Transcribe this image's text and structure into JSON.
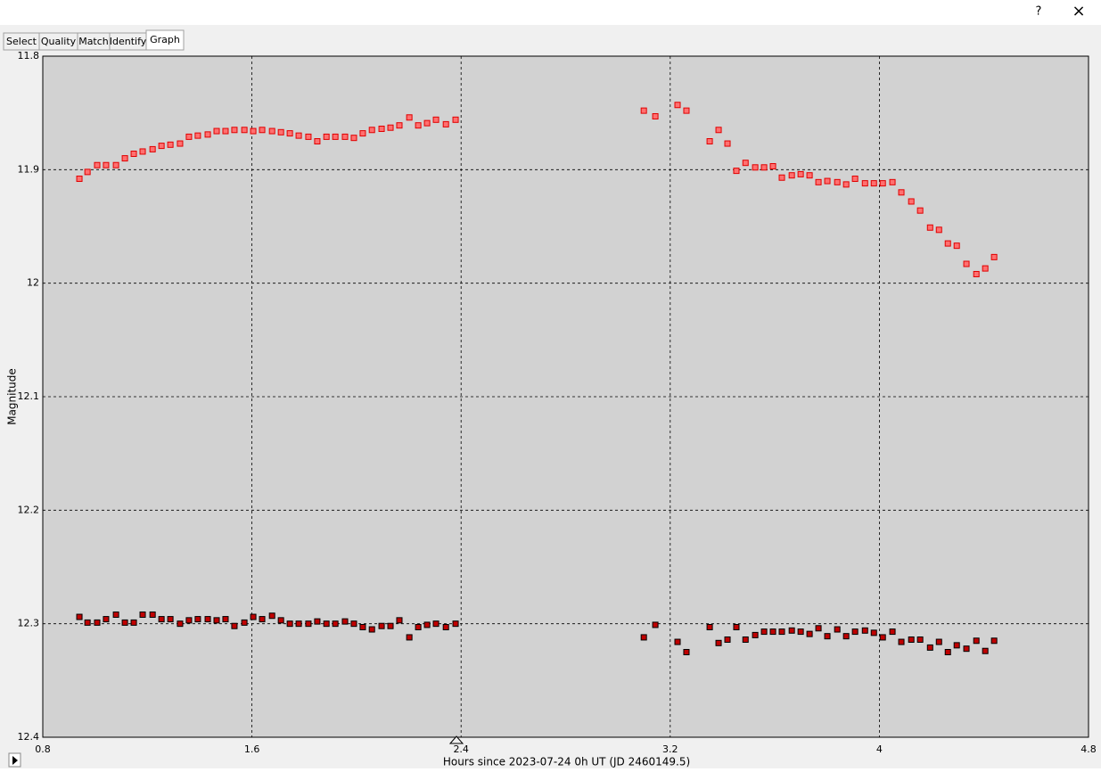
{
  "window": {
    "help": "?",
    "close": "×"
  },
  "tabs": [
    "Select",
    "Quality",
    "Match",
    "Identify",
    "Graph"
  ],
  "chart_data": {
    "type": "line",
    "x_label": "Hours since 2023-07-24 0h UT (JD 2460149.5)",
    "y_label": "Magnitude",
    "x": [
      0.94,
      0.971,
      1.008,
      1.042,
      1.08,
      1.114,
      1.148,
      1.182,
      1.22,
      1.254,
      1.288,
      1.325,
      1.359,
      1.393,
      1.431,
      1.465,
      1.499,
      1.533,
      1.571,
      1.605,
      1.639,
      1.677,
      1.711,
      1.745,
      1.779,
      1.816,
      1.85,
      1.885,
      1.919,
      1.956,
      1.99,
      2.024,
      2.059,
      2.096,
      2.13,
      2.164,
      2.202,
      2.236,
      2.27,
      2.304,
      2.342,
      2.379,
      3.099,
      3.143,
      3.228,
      3.262,
      3.351,
      3.385,
      3.419,
      3.453,
      3.488,
      3.525,
      3.559,
      3.593,
      3.627,
      3.665,
      3.699,
      3.733,
      3.767,
      3.801,
      3.839,
      3.873,
      3.907,
      3.945,
      3.979,
      4.013,
      4.05,
      4.084,
      4.122,
      4.156,
      4.194,
      4.228,
      4.262,
      4.296,
      4.333,
      4.371,
      4.405,
      4.439
    ],
    "series": [
      {
        "color": "#ff0000",
        "marker_color": "#ff7070",
        "marker_edge": "#e00000",
        "line_width": 3.5,
        "values": [
          11.908,
          11.902,
          11.896,
          11.896,
          11.896,
          11.89,
          11.886,
          11.884,
          11.882,
          11.879,
          11.878,
          11.877,
          11.871,
          11.87,
          11.869,
          11.866,
          11.866,
          11.865,
          11.865,
          11.866,
          11.865,
          11.866,
          11.867,
          11.868,
          11.87,
          11.871,
          11.875,
          11.871,
          11.871,
          11.871,
          11.872,
          11.868,
          11.865,
          11.864,
          11.863,
          11.861,
          11.854,
          11.861,
          11.859,
          11.856,
          11.86,
          11.856,
          11.848,
          11.853,
          11.843,
          11.848,
          11.875,
          11.865,
          11.877,
          11.901,
          11.894,
          11.898,
          11.898,
          11.897,
          11.907,
          11.905,
          11.904,
          11.905,
          11.911,
          11.91,
          11.911,
          11.913,
          11.908,
          11.912,
          11.912,
          11.912,
          11.911,
          11.92,
          11.928,
          11.936,
          11.951,
          11.953,
          11.965,
          11.967,
          11.983,
          11.992,
          11.987,
          11.977
        ]
      },
      {
        "color": "#0000e0",
        "marker_color": "#c00000",
        "marker_edge": "#000000",
        "line_width": 1.5,
        "values": [
          12.294,
          12.299,
          12.299,
          12.296,
          12.292,
          12.299,
          12.299,
          12.292,
          12.292,
          12.296,
          12.296,
          12.3,
          12.297,
          12.296,
          12.296,
          12.297,
          12.296,
          12.302,
          12.299,
          12.294,
          12.296,
          12.293,
          12.297,
          12.3,
          12.3,
          12.3,
          12.298,
          12.3,
          12.3,
          12.298,
          12.3,
          12.303,
          12.305,
          12.302,
          12.302,
          12.297,
          12.312,
          12.303,
          12.301,
          12.3,
          12.303,
          12.3,
          12.312,
          12.301,
          12.316,
          12.325,
          12.303,
          12.317,
          12.314,
          12.303,
          12.314,
          12.31,
          12.307,
          12.307,
          12.307,
          12.306,
          12.307,
          12.309,
          12.304,
          12.311,
          12.305,
          12.311,
          12.307,
          12.306,
          12.308,
          12.312,
          12.307,
          12.316,
          12.314,
          12.314,
          12.321,
          12.316,
          12.325,
          12.319,
          12.322,
          12.315,
          12.324,
          12.315
        ]
      }
    ],
    "xlim": [
      0.8,
      4.8
    ],
    "xticks": [
      0.8,
      1.6,
      2.4,
      3.2,
      4,
      4.8
    ],
    "ylim": [
      11.8,
      12.4
    ],
    "yticks": [
      11.8,
      11.9,
      12,
      12.1,
      12.2,
      12.3,
      12.4
    ],
    "y_inverted": true,
    "grid": true,
    "background": "#d2d2d2"
  }
}
